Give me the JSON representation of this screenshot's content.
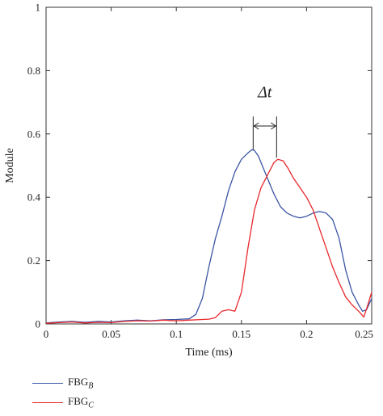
{
  "chart_data": {
    "type": "line",
    "xlabel": "Time (ms)",
    "ylabel": "Module",
    "xlim": [
      0,
      0.25
    ],
    "ylim": [
      0,
      1
    ],
    "xticks": [
      {
        "v": 0,
        "label": "0"
      },
      {
        "v": 0.05,
        "label": "0.05"
      },
      {
        "v": 0.1,
        "label": "0.1"
      },
      {
        "v": 0.15,
        "label": "0.15"
      },
      {
        "v": 0.2,
        "label": "0.2"
      },
      {
        "v": 0.25,
        "label": "0.25"
      }
    ],
    "yticks": [
      {
        "v": 0,
        "label": "0"
      },
      {
        "v": 0.2,
        "label": "0.2"
      },
      {
        "v": 0.4,
        "label": "0.4"
      },
      {
        "v": 0.6,
        "label": "0.6"
      },
      {
        "v": 0.8,
        "label": "0.8"
      },
      {
        "v": 1,
        "label": "1"
      }
    ],
    "grid": false,
    "legend_position": "below-left",
    "annotation": {
      "text": "Δt",
      "x_start": 0.159,
      "x_end": 0.177,
      "y_arrow": 0.625,
      "y_text": 0.715
    },
    "series": [
      {
        "name": "FBG",
        "subscript": "B",
        "color": "#3a55a4",
        "x": [
          0,
          0.01,
          0.02,
          0.03,
          0.04,
          0.05,
          0.06,
          0.07,
          0.08,
          0.09,
          0.1,
          0.11,
          0.115,
          0.12,
          0.125,
          0.13,
          0.135,
          0.14,
          0.145,
          0.15,
          0.155,
          0.158,
          0.16,
          0.163,
          0.166,
          0.17,
          0.175,
          0.18,
          0.185,
          0.19,
          0.195,
          0.2,
          0.205,
          0.21,
          0.215,
          0.22,
          0.225,
          0.23,
          0.235,
          0.24,
          0.243,
          0.246,
          0.25
        ],
        "y": [
          0.003,
          0.006,
          0.008,
          0.005,
          0.008,
          0.006,
          0.01,
          0.012,
          0.01,
          0.013,
          0.014,
          0.016,
          0.03,
          0.08,
          0.18,
          0.27,
          0.34,
          0.42,
          0.48,
          0.52,
          0.54,
          0.55,
          0.548,
          0.53,
          0.5,
          0.46,
          0.41,
          0.37,
          0.35,
          0.34,
          0.335,
          0.34,
          0.35,
          0.355,
          0.35,
          0.33,
          0.27,
          0.17,
          0.1,
          0.06,
          0.04,
          0.045,
          0.08
        ]
      },
      {
        "name": "FBG",
        "subscript": "C",
        "color": "#e8282c",
        "x": [
          0,
          0.01,
          0.02,
          0.03,
          0.04,
          0.05,
          0.06,
          0.07,
          0.08,
          0.09,
          0.1,
          0.11,
          0.12,
          0.125,
          0.13,
          0.135,
          0.14,
          0.145,
          0.15,
          0.155,
          0.16,
          0.165,
          0.17,
          0.175,
          0.178,
          0.182,
          0.186,
          0.19,
          0.195,
          0.2,
          0.205,
          0.21,
          0.215,
          0.22,
          0.225,
          0.23,
          0.235,
          0.24,
          0.244,
          0.247,
          0.25
        ],
        "y": [
          0.002,
          0.004,
          0.006,
          0.003,
          0.005,
          0.004,
          0.008,
          0.01,
          0.009,
          0.012,
          0.01,
          0.012,
          0.014,
          0.015,
          0.02,
          0.04,
          0.045,
          0.04,
          0.1,
          0.24,
          0.36,
          0.43,
          0.47,
          0.51,
          0.52,
          0.515,
          0.49,
          0.46,
          0.43,
          0.4,
          0.36,
          0.3,
          0.24,
          0.18,
          0.13,
          0.085,
          0.06,
          0.04,
          0.022,
          0.06,
          0.1
        ]
      }
    ]
  }
}
